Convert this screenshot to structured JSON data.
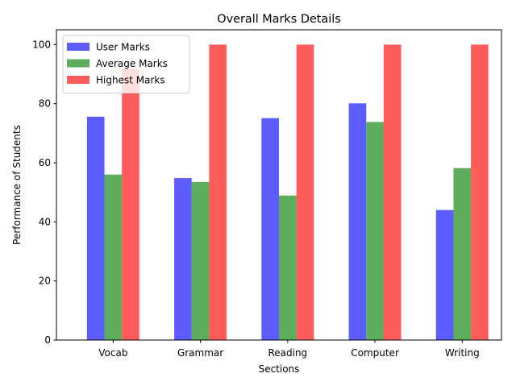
{
  "chart_data": {
    "type": "bar",
    "title": "Overall Marks Details",
    "xlabel": "Sections",
    "ylabel": "Performance of Students",
    "categories": [
      "Vocab",
      "Grammar",
      "Reading",
      "Computer",
      "Writing"
    ],
    "ylim": [
      0,
      105
    ],
    "yticks": [
      0,
      20,
      40,
      60,
      80,
      100
    ],
    "grid": false,
    "legend_position": "top-left",
    "series": [
      {
        "name": "User Marks",
        "color": "#3333ff",
        "values": [
          75.6,
          54.8,
          75.1,
          80.1,
          44.0
        ]
      },
      {
        "name": "Average Marks",
        "color": "#339933",
        "values": [
          56.0,
          53.5,
          48.9,
          73.8,
          58.2
        ]
      },
      {
        "name": "Highest Marks",
        "color": "#ff3333",
        "values": [
          91.8,
          100,
          100,
          100,
          100
        ]
      }
    ]
  }
}
